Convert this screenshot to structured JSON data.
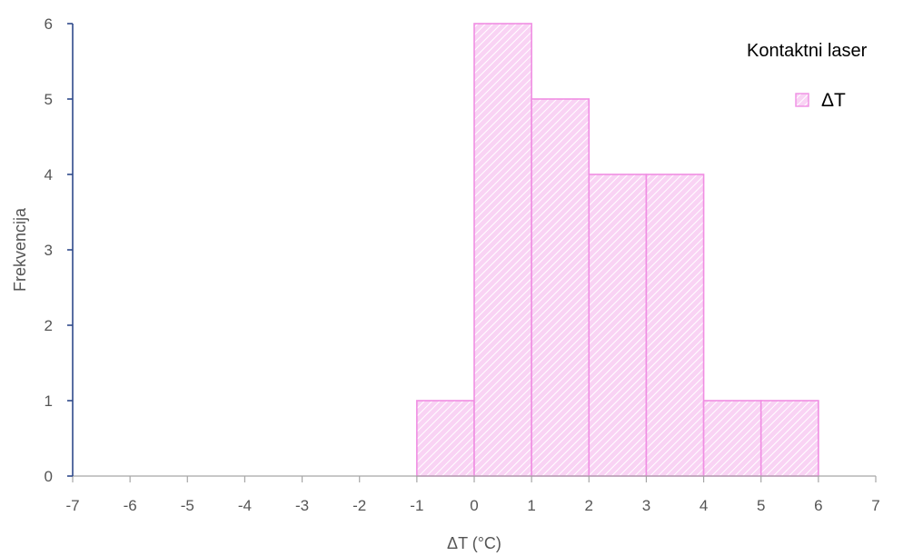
{
  "chart_data": {
    "type": "bar",
    "bin_edges": [
      -1,
      0,
      1,
      2,
      3,
      4,
      5,
      6
    ],
    "series": [
      {
        "name": "ΔT",
        "values": [
          1,
          6,
          5,
          4,
          4,
          1,
          1
        ]
      }
    ],
    "xlabel": "ΔT (°C)",
    "ylabel": "Frekvencija",
    "xlim": [
      -7,
      7
    ],
    "ylim": [
      0,
      6
    ],
    "x_ticks": [
      "-7",
      "-6",
      "-5",
      "-4",
      "-3",
      "-2",
      "-1",
      "0",
      "1",
      "2",
      "3",
      "4",
      "5",
      "6",
      "7"
    ],
    "y_ticks": [
      "0",
      "1",
      "2",
      "3",
      "4",
      "5",
      "6"
    ],
    "legend": {
      "title": "Kontaktni laser",
      "position": "top-right"
    },
    "grid": false,
    "colors": {
      "bar_fill": "#f9d3f4",
      "bar_hatch": "#ffffff",
      "bar_edge": "#f08ee3",
      "y_axis": "#2f4a8a",
      "x_axis": "#a6a6a6",
      "text": "#555555"
    }
  }
}
